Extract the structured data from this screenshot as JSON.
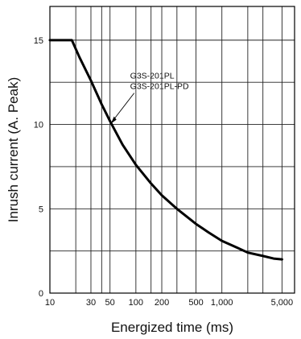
{
  "chart_data": {
    "type": "line",
    "title": "",
    "xlabel": "Energized time (ms)",
    "ylabel": "Inrush current (A. Peak)",
    "x_scale": "log",
    "xlim": [
      10,
      7000
    ],
    "ylim": [
      0,
      17
    ],
    "grid": true,
    "x_ticks": [
      {
        "value": 10,
        "label": "10"
      },
      {
        "value": 30,
        "label": "30"
      },
      {
        "value": 50,
        "label": "50"
      },
      {
        "value": 100,
        "label": "100"
      },
      {
        "value": 200,
        "label": "200"
      },
      {
        "value": 500,
        "label": "500"
      },
      {
        "value": 1000,
        "label": "1,000"
      },
      {
        "value": 5000,
        "label": "5,000"
      }
    ],
    "x_gridlines": [
      20,
      30,
      40,
      50,
      100,
      150,
      200,
      300,
      500,
      1000,
      2000,
      3000,
      5000
    ],
    "y_ticks": [
      {
        "value": 0,
        "label": "0"
      },
      {
        "value": 5,
        "label": "5"
      },
      {
        "value": 10,
        "label": "10"
      },
      {
        "value": 15,
        "label": "15"
      }
    ],
    "y_gridlines": [
      2.5,
      5,
      7.5,
      10,
      12.5,
      15
    ],
    "annotation": {
      "lines": [
        "G3S-201PL",
        "G3S-201PL-PD"
      ],
      "x": 50,
      "y": 10
    },
    "series": [
      {
        "x": [
          10,
          18,
          22,
          30,
          40,
          50,
          70,
          100,
          150,
          200,
          300,
          500,
          700,
          1000,
          1500,
          2000,
          3000,
          4000,
          5000
        ],
        "y": [
          15,
          15,
          14,
          12.6,
          11.2,
          10.2,
          8.8,
          7.6,
          6.5,
          5.8,
          5.0,
          4.1,
          3.6,
          3.1,
          2.7,
          2.4,
          2.2,
          2.05,
          2.0
        ]
      }
    ]
  }
}
